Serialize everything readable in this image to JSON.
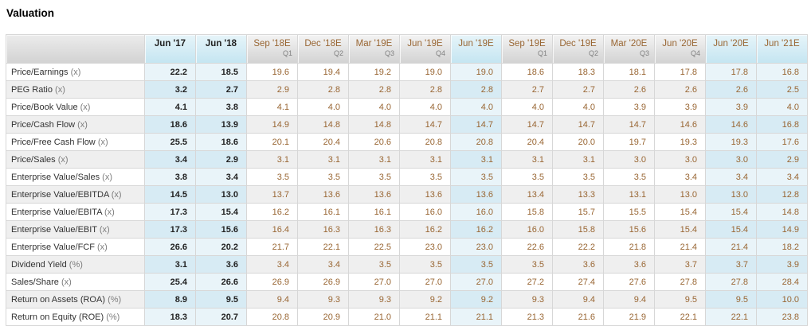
{
  "title": "Valuation",
  "table": {
    "columns": [
      {
        "label": "Jun '17",
        "sub": "",
        "style": "actual"
      },
      {
        "label": "Jun '18",
        "sub": "",
        "style": "actual"
      },
      {
        "label": "Sep '18E",
        "sub": "Q1",
        "style": "quarter"
      },
      {
        "label": "Dec '18E",
        "sub": "Q2",
        "style": "quarter"
      },
      {
        "label": "Mar '19E",
        "sub": "Q3",
        "style": "quarter"
      },
      {
        "label": "Jun '19E",
        "sub": "Q4",
        "style": "quarter"
      },
      {
        "label": "Jun '19E",
        "sub": "",
        "style": "annual"
      },
      {
        "label": "Sep '19E",
        "sub": "Q1",
        "style": "quarter"
      },
      {
        "label": "Dec '19E",
        "sub": "Q2",
        "style": "quarter"
      },
      {
        "label": "Mar '20E",
        "sub": "Q3",
        "style": "quarter"
      },
      {
        "label": "Jun '20E",
        "sub": "Q4",
        "style": "quarter"
      },
      {
        "label": "Jun '20E",
        "sub": "",
        "style": "annual"
      },
      {
        "label": "Jun '21E",
        "sub": "",
        "style": "annual"
      }
    ],
    "rows": [
      {
        "label": "Price/Earnings",
        "unit": "(x)",
        "values": [
          "22.2",
          "18.5",
          "19.6",
          "19.4",
          "19.2",
          "19.0",
          "19.0",
          "18.6",
          "18.3",
          "18.1",
          "17.8",
          "17.8",
          "16.8"
        ]
      },
      {
        "label": "PEG Ratio",
        "unit": "(x)",
        "values": [
          "3.2",
          "2.7",
          "2.9",
          "2.8",
          "2.8",
          "2.8",
          "2.8",
          "2.7",
          "2.7",
          "2.6",
          "2.6",
          "2.6",
          "2.5"
        ]
      },
      {
        "label": "Price/Book Value",
        "unit": "(x)",
        "values": [
          "4.1",
          "3.8",
          "4.1",
          "4.0",
          "4.0",
          "4.0",
          "4.0",
          "4.0",
          "4.0",
          "3.9",
          "3.9",
          "3.9",
          "4.0"
        ]
      },
      {
        "label": "Price/Cash Flow",
        "unit": "(x)",
        "values": [
          "18.6",
          "13.9",
          "14.9",
          "14.8",
          "14.8",
          "14.7",
          "14.7",
          "14.7",
          "14.7",
          "14.7",
          "14.6",
          "14.6",
          "16.8"
        ]
      },
      {
        "label": "Price/Free Cash Flow",
        "unit": "(x)",
        "values": [
          "25.5",
          "18.6",
          "20.1",
          "20.4",
          "20.6",
          "20.8",
          "20.8",
          "20.4",
          "20.0",
          "19.7",
          "19.3",
          "19.3",
          "17.6"
        ]
      },
      {
        "label": "Price/Sales",
        "unit": "(x)",
        "values": [
          "3.4",
          "2.9",
          "3.1",
          "3.1",
          "3.1",
          "3.1",
          "3.1",
          "3.1",
          "3.1",
          "3.0",
          "3.0",
          "3.0",
          "2.9"
        ]
      },
      {
        "label": "Enterprise Value/Sales",
        "unit": "(x)",
        "values": [
          "3.8",
          "3.4",
          "3.5",
          "3.5",
          "3.5",
          "3.5",
          "3.5",
          "3.5",
          "3.5",
          "3.5",
          "3.4",
          "3.4",
          "3.4"
        ]
      },
      {
        "label": "Enterprise Value/EBITDA",
        "unit": "(x)",
        "values": [
          "14.5",
          "13.0",
          "13.7",
          "13.6",
          "13.6",
          "13.6",
          "13.6",
          "13.4",
          "13.3",
          "13.1",
          "13.0",
          "13.0",
          "12.8"
        ]
      },
      {
        "label": "Enterprise Value/EBITA",
        "unit": "(x)",
        "values": [
          "17.3",
          "15.4",
          "16.2",
          "16.1",
          "16.1",
          "16.0",
          "16.0",
          "15.8",
          "15.7",
          "15.5",
          "15.4",
          "15.4",
          "14.8"
        ]
      },
      {
        "label": "Enterprise Value/EBIT",
        "unit": "(x)",
        "values": [
          "17.3",
          "15.6",
          "16.4",
          "16.3",
          "16.3",
          "16.2",
          "16.2",
          "16.0",
          "15.8",
          "15.6",
          "15.4",
          "15.4",
          "14.9"
        ]
      },
      {
        "label": "Enterprise Value/FCF",
        "unit": "(x)",
        "values": [
          "26.6",
          "20.2",
          "21.7",
          "22.1",
          "22.5",
          "23.0",
          "23.0",
          "22.6",
          "22.2",
          "21.8",
          "21.4",
          "21.4",
          "18.2"
        ]
      },
      {
        "label": "Dividend Yield",
        "unit": "(%)",
        "values": [
          "3.1",
          "3.6",
          "3.4",
          "3.4",
          "3.5",
          "3.5",
          "3.5",
          "3.5",
          "3.6",
          "3.6",
          "3.7",
          "3.7",
          "3.9"
        ]
      },
      {
        "label": "Sales/Share",
        "unit": "(x)",
        "values": [
          "25.4",
          "26.6",
          "26.9",
          "26.9",
          "27.0",
          "27.0",
          "27.0",
          "27.2",
          "27.4",
          "27.6",
          "27.8",
          "27.8",
          "28.4"
        ]
      },
      {
        "label": "Return on Assets (ROA)",
        "unit": "(%)",
        "values": [
          "8.9",
          "9.5",
          "9.4",
          "9.3",
          "9.3",
          "9.2",
          "9.2",
          "9.3",
          "9.4",
          "9.4",
          "9.5",
          "9.5",
          "10.0"
        ]
      },
      {
        "label": "Return on Equity (ROE)",
        "unit": "(%)",
        "values": [
          "18.3",
          "20.7",
          "20.8",
          "20.9",
          "21.0",
          "21.1",
          "21.1",
          "21.3",
          "21.6",
          "21.9",
          "22.1",
          "22.1",
          "23.8"
        ]
      }
    ]
  },
  "colors": {
    "estimate_text": "#996633",
    "actual_text": "#222222",
    "sub_label_text": "#808080",
    "blue_row_light": "#e9f4f9",
    "blue_row_dark": "#d7ebf4",
    "gray_row": "#efefef",
    "header_blue_top": "#e6f4f9",
    "header_blue_bottom": "#c4e5f1",
    "header_gray_top": "#f3f3f3",
    "header_gray_bottom": "#d2d2d2",
    "border": "#d7d7d7"
  }
}
